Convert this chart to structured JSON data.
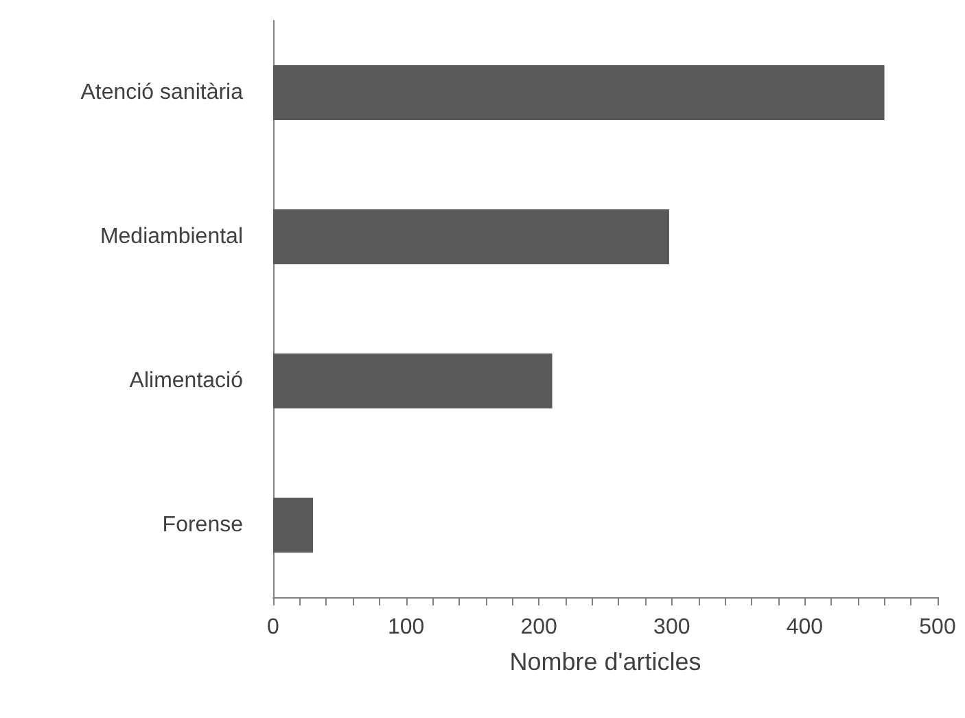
{
  "chart_data": {
    "type": "bar",
    "orientation": "horizontal",
    "xlabel": "Nombre d'articles",
    "categories": [
      "Atenció sanitària",
      "Mediambiental",
      "Alimentació",
      "Forense"
    ],
    "values": [
      460,
      298,
      210,
      30
    ],
    "color": "#595959",
    "xlim": [
      0,
      500
    ],
    "xticks": [
      0,
      {
        "value": 20,
        "label": null
      },
      {
        "value": 40,
        "label": null
      },
      {
        "value": 60,
        "label": null
      },
      {
        "value": 80,
        "label": null
      },
      100,
      {
        "value": 120,
        "label": null
      },
      {
        "value": 140,
        "label": null
      },
      {
        "value": 160,
        "label": null
      },
      {
        "value": 180,
        "label": null
      },
      200,
      {
        "value": 220,
        "label": null
      },
      {
        "value": 240,
        "label": null
      },
      {
        "value": 260,
        "label": null
      },
      {
        "value": 280,
        "label": null
      },
      300,
      {
        "value": 320,
        "label": null
      },
      {
        "value": 340,
        "label": null
      },
      {
        "value": 360,
        "label": null
      },
      {
        "value": 380,
        "label": null
      },
      400,
      {
        "value": 420,
        "label": null
      },
      {
        "value": 440,
        "label": null
      },
      {
        "value": 460,
        "label": null
      },
      {
        "value": 480,
        "label": null
      },
      500
    ],
    "grid": false
  }
}
